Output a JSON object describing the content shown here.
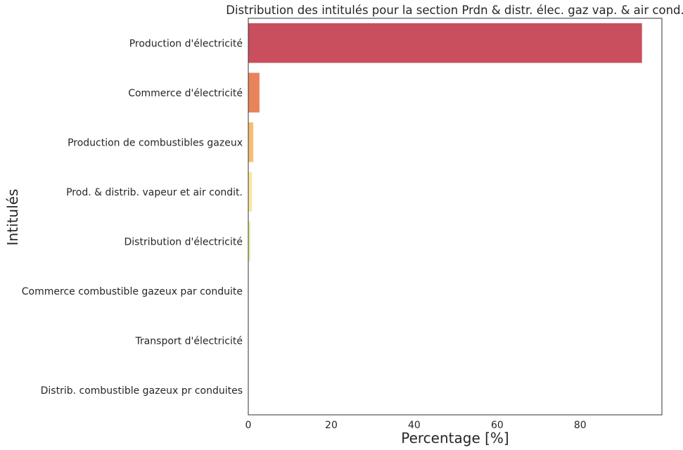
{
  "chart_data": {
    "type": "bar",
    "orientation": "horizontal",
    "title": "Distribution des intitulés pour la section Prdn & distr. élec. gaz vap. & air cond.",
    "xlabel": "Percentage [%]",
    "ylabel": "Intitulés",
    "xlim": [
      0,
      99.7
    ],
    "xticks": [
      "0",
      "20",
      "40",
      "60",
      "80"
    ],
    "grid": false,
    "categories": [
      "Production d'électricité",
      "Commerce d'électricité",
      "Production de combustibles gazeux",
      "Prod. & distrib. vapeur et air condit.",
      "Distribution d'électricité",
      "Commerce combustible gazeux par conduite",
      "Transport d'électricité",
      "Distrib. combustible gazeux pr conduites"
    ],
    "values": [
      94.9,
      2.7,
      1.2,
      0.9,
      0.5,
      0.05,
      0.03,
      0.02
    ],
    "colors": [
      "#c94f5e",
      "#e8845a",
      "#f6bf72",
      "#f9eaa0",
      "#e8f0a4",
      "#b5dea8",
      "#7cc0a7",
      "#4a9bb5"
    ]
  }
}
